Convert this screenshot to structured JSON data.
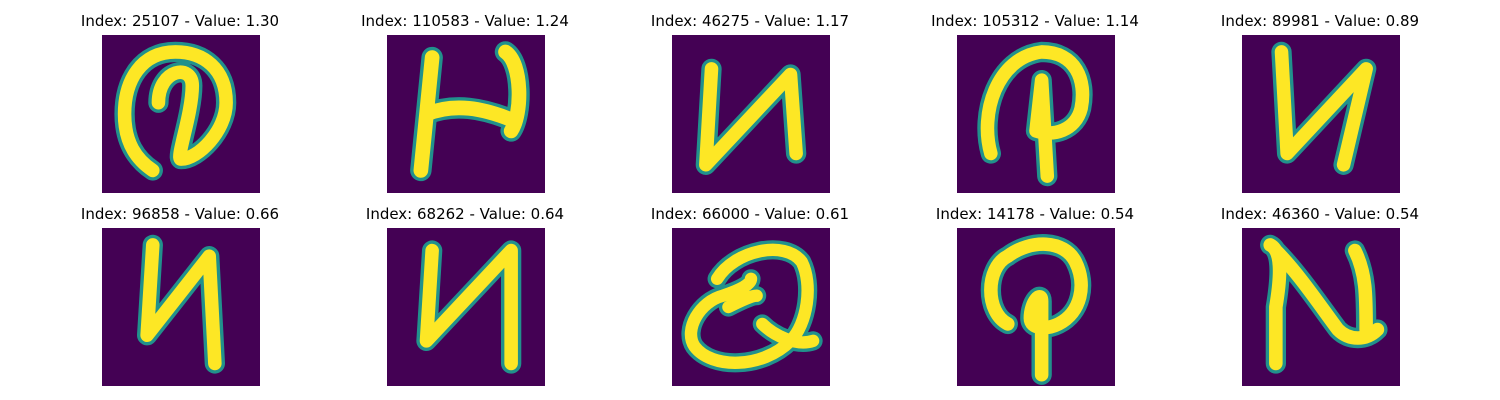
{
  "colors": {
    "background": "#440154",
    "edge": "#21918c",
    "mid": "#5ec962",
    "stroke": "#fde725"
  },
  "panels": [
    {
      "index": "25107",
      "value": "1.30",
      "title": "Index: 25107 - Value: 1.30",
      "glyph": "at-sign"
    },
    {
      "index": "110583",
      "value": "1.24",
      "title": "Index: 110583 - Value: 1.24",
      "glyph": "H"
    },
    {
      "index": "46275",
      "value": "1.17",
      "title": "Index: 46275 - Value: 1.17",
      "glyph": "N-reversed"
    },
    {
      "index": "105312",
      "value": "1.14",
      "title": "Index: 105312 - Value: 1.14",
      "glyph": "P-loop"
    },
    {
      "index": "89981",
      "value": "0.89",
      "title": "Index: 89981 - Value: 0.89",
      "glyph": "N-reversed"
    },
    {
      "index": "96858",
      "value": "0.66",
      "title": "Index: 96858 - Value: 0.66",
      "glyph": "N-reversed"
    },
    {
      "index": "68262",
      "value": "0.64",
      "title": "Index: 68262 - Value: 0.64",
      "glyph": "N-reversed"
    },
    {
      "index": "66000",
      "value": "0.61",
      "title": "Index: 66000 - Value: 0.61",
      "glyph": "Q"
    },
    {
      "index": "14178",
      "value": "0.54",
      "title": "Index: 14178 - Value: 0.54",
      "glyph": "P-loop"
    },
    {
      "index": "46360",
      "value": "0.54",
      "title": "Index: 46360 - Value: 0.54",
      "glyph": "N"
    }
  ]
}
